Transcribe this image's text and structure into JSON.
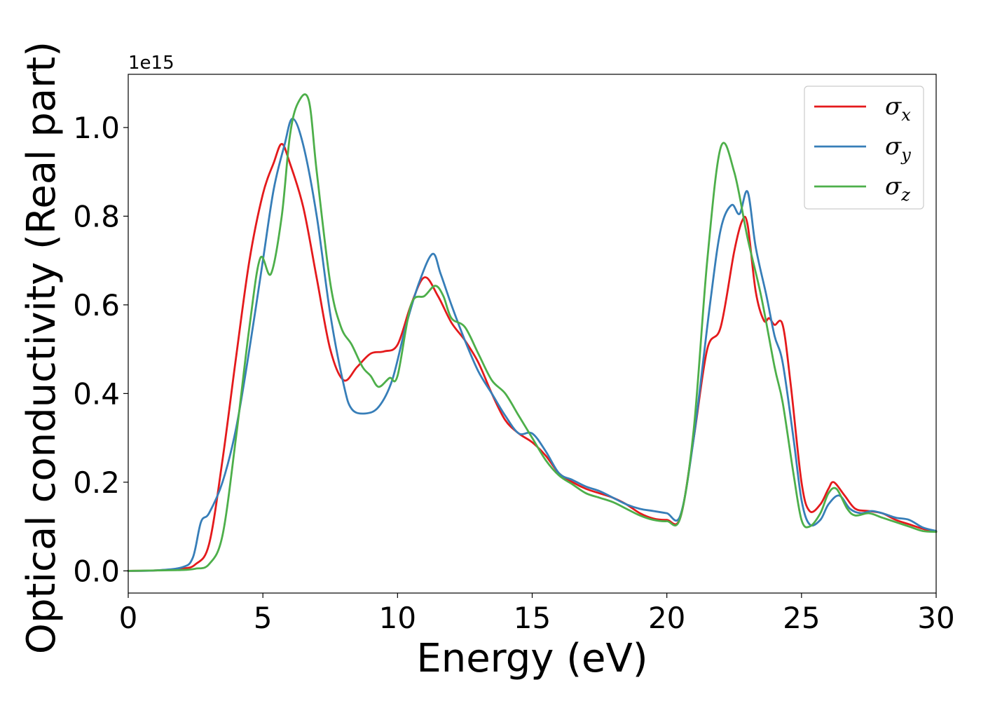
{
  "chart_data": {
    "type": "line",
    "title": "",
    "xlabel": "Energy (eV)",
    "ylabel": "Optical conductivity (Real part)",
    "y_offset_label": "1e15",
    "xlim": [
      0,
      30
    ],
    "ylim": [
      -0.05,
      1.12
    ],
    "xticks": [
      "0",
      "5",
      "10",
      "15",
      "20",
      "25",
      "30"
    ],
    "yticks": [
      "0.0",
      "0.2",
      "0.4",
      "0.6",
      "0.8",
      "1.0"
    ],
    "grid": false,
    "legend_position": "top-right",
    "series": [
      {
        "name": "σx",
        "symbol": "σ",
        "subscript": "x",
        "color": "#e41a1c",
        "points": [
          [
            0,
            0
          ],
          [
            1,
            0.001
          ],
          [
            2,
            0.005
          ],
          [
            2.5,
            0.015
          ],
          [
            3,
            0.06
          ],
          [
            3.5,
            0.25
          ],
          [
            4,
            0.48
          ],
          [
            4.5,
            0.7
          ],
          [
            5,
            0.85
          ],
          [
            5.4,
            0.92
          ],
          [
            5.7,
            0.963
          ],
          [
            6,
            0.92
          ],
          [
            6.5,
            0.82
          ],
          [
            7,
            0.66
          ],
          [
            7.5,
            0.5
          ],
          [
            8,
            0.43
          ],
          [
            8.5,
            0.46
          ],
          [
            9,
            0.49
          ],
          [
            9.5,
            0.495
          ],
          [
            10,
            0.51
          ],
          [
            10.5,
            0.6
          ],
          [
            11,
            0.662
          ],
          [
            11.5,
            0.62
          ],
          [
            12,
            0.56
          ],
          [
            12.5,
            0.52
          ],
          [
            13,
            0.47
          ],
          [
            13.5,
            0.4
          ],
          [
            14,
            0.34
          ],
          [
            14.5,
            0.31
          ],
          [
            15,
            0.29
          ],
          [
            15.5,
            0.26
          ],
          [
            16,
            0.22
          ],
          [
            16.5,
            0.2
          ],
          [
            17,
            0.185
          ],
          [
            17.5,
            0.175
          ],
          [
            18,
            0.165
          ],
          [
            18.5,
            0.15
          ],
          [
            19,
            0.13
          ],
          [
            19.5,
            0.118
          ],
          [
            20,
            0.115
          ],
          [
            20.5,
            0.12
          ],
          [
            21,
            0.3
          ],
          [
            21.5,
            0.5
          ],
          [
            22,
            0.55
          ],
          [
            22.5,
            0.72
          ],
          [
            22.8,
            0.79
          ],
          [
            23,
            0.78
          ],
          [
            23.3,
            0.63
          ],
          [
            23.6,
            0.565
          ],
          [
            23.8,
            0.57
          ],
          [
            24,
            0.555
          ],
          [
            24.3,
            0.555
          ],
          [
            24.6,
            0.42
          ],
          [
            25,
            0.2
          ],
          [
            25.3,
            0.135
          ],
          [
            25.7,
            0.15
          ],
          [
            26,
            0.185
          ],
          [
            26.2,
            0.2
          ],
          [
            26.6,
            0.17
          ],
          [
            27,
            0.14
          ],
          [
            27.5,
            0.135
          ],
          [
            28,
            0.13
          ],
          [
            28.5,
            0.115
          ],
          [
            29,
            0.105
          ],
          [
            29.5,
            0.095
          ],
          [
            30,
            0.088
          ]
        ]
      },
      {
        "name": "σy",
        "symbol": "σ",
        "subscript": "y",
        "color": "#377eb8",
        "points": [
          [
            0,
            0
          ],
          [
            1,
            0.001
          ],
          [
            2,
            0.008
          ],
          [
            2.4,
            0.03
          ],
          [
            2.7,
            0.11
          ],
          [
            3,
            0.13
          ],
          [
            3.5,
            0.2
          ],
          [
            4,
            0.32
          ],
          [
            4.5,
            0.5
          ],
          [
            5,
            0.7
          ],
          [
            5.4,
            0.86
          ],
          [
            5.8,
            0.96
          ],
          [
            6.1,
            1.02
          ],
          [
            6.5,
            0.96
          ],
          [
            7,
            0.8
          ],
          [
            7.5,
            0.58
          ],
          [
            8,
            0.42
          ],
          [
            8.3,
            0.365
          ],
          [
            8.8,
            0.355
          ],
          [
            9.3,
            0.37
          ],
          [
            9.8,
            0.43
          ],
          [
            10.3,
            0.55
          ],
          [
            10.8,
            0.65
          ],
          [
            11.3,
            0.715
          ],
          [
            11.6,
            0.67
          ],
          [
            12,
            0.6
          ],
          [
            12.5,
            0.52
          ],
          [
            13,
            0.45
          ],
          [
            13.5,
            0.4
          ],
          [
            14,
            0.35
          ],
          [
            14.5,
            0.31
          ],
          [
            15,
            0.31
          ],
          [
            15.5,
            0.27
          ],
          [
            16,
            0.22
          ],
          [
            16.5,
            0.205
          ],
          [
            17,
            0.19
          ],
          [
            17.5,
            0.18
          ],
          [
            18,
            0.165
          ],
          [
            18.5,
            0.15
          ],
          [
            19,
            0.14
          ],
          [
            19.5,
            0.135
          ],
          [
            20,
            0.13
          ],
          [
            20.5,
            0.125
          ],
          [
            21,
            0.3
          ],
          [
            21.6,
            0.6
          ],
          [
            22,
            0.77
          ],
          [
            22.4,
            0.825
          ],
          [
            22.7,
            0.805
          ],
          [
            23,
            0.855
          ],
          [
            23.3,
            0.73
          ],
          [
            23.7,
            0.62
          ],
          [
            24,
            0.53
          ],
          [
            24.3,
            0.47
          ],
          [
            24.7,
            0.3
          ],
          [
            25,
            0.16
          ],
          [
            25.3,
            0.105
          ],
          [
            25.7,
            0.115
          ],
          [
            26,
            0.15
          ],
          [
            26.4,
            0.17
          ],
          [
            26.8,
            0.14
          ],
          [
            27.2,
            0.13
          ],
          [
            27.6,
            0.135
          ],
          [
            28,
            0.13
          ],
          [
            28.5,
            0.12
          ],
          [
            29,
            0.115
          ],
          [
            29.5,
            0.098
          ],
          [
            30,
            0.09
          ]
        ]
      },
      {
        "name": "σz",
        "symbol": "σ",
        "subscript": "z",
        "color": "#4daf4a",
        "points": [
          [
            0,
            0
          ],
          [
            1,
            0.001
          ],
          [
            2,
            0.002
          ],
          [
            2.5,
            0.005
          ],
          [
            3,
            0.015
          ],
          [
            3.5,
            0.08
          ],
          [
            4,
            0.3
          ],
          [
            4.5,
            0.55
          ],
          [
            4.9,
            0.705
          ],
          [
            5.3,
            0.67
          ],
          [
            5.7,
            0.8
          ],
          [
            6,
            0.98
          ],
          [
            6.3,
            1.055
          ],
          [
            6.7,
            1.062
          ],
          [
            7,
            0.9
          ],
          [
            7.5,
            0.65
          ],
          [
            7.9,
            0.55
          ],
          [
            8.3,
            0.51
          ],
          [
            8.7,
            0.46
          ],
          [
            9,
            0.44
          ],
          [
            9.3,
            0.415
          ],
          [
            9.7,
            0.435
          ],
          [
            10,
            0.44
          ],
          [
            10.5,
            0.6
          ],
          [
            11,
            0.62
          ],
          [
            11.4,
            0.643
          ],
          [
            11.7,
            0.62
          ],
          [
            12,
            0.57
          ],
          [
            12.5,
            0.55
          ],
          [
            13,
            0.49
          ],
          [
            13.5,
            0.43
          ],
          [
            14,
            0.4
          ],
          [
            14.5,
            0.35
          ],
          [
            15,
            0.3
          ],
          [
            15.5,
            0.25
          ],
          [
            16,
            0.215
          ],
          [
            16.5,
            0.195
          ],
          [
            17,
            0.175
          ],
          [
            17.5,
            0.165
          ],
          [
            18,
            0.155
          ],
          [
            18.5,
            0.14
          ],
          [
            19,
            0.125
          ],
          [
            19.5,
            0.115
          ],
          [
            20,
            0.112
          ],
          [
            20.5,
            0.12
          ],
          [
            21,
            0.32
          ],
          [
            21.5,
            0.7
          ],
          [
            22,
            0.955
          ],
          [
            22.5,
            0.9
          ],
          [
            23,
            0.75
          ],
          [
            23.5,
            0.62
          ],
          [
            24,
            0.46
          ],
          [
            24.3,
            0.38
          ],
          [
            24.7,
            0.22
          ],
          [
            25,
            0.115
          ],
          [
            25.3,
            0.1
          ],
          [
            25.7,
            0.13
          ],
          [
            26,
            0.175
          ],
          [
            26.3,
            0.185
          ],
          [
            26.7,
            0.14
          ],
          [
            27,
            0.125
          ],
          [
            27.5,
            0.13
          ],
          [
            28,
            0.12
          ],
          [
            28.5,
            0.11
          ],
          [
            29,
            0.1
          ],
          [
            29.5,
            0.09
          ],
          [
            30,
            0.088
          ]
        ]
      }
    ]
  }
}
